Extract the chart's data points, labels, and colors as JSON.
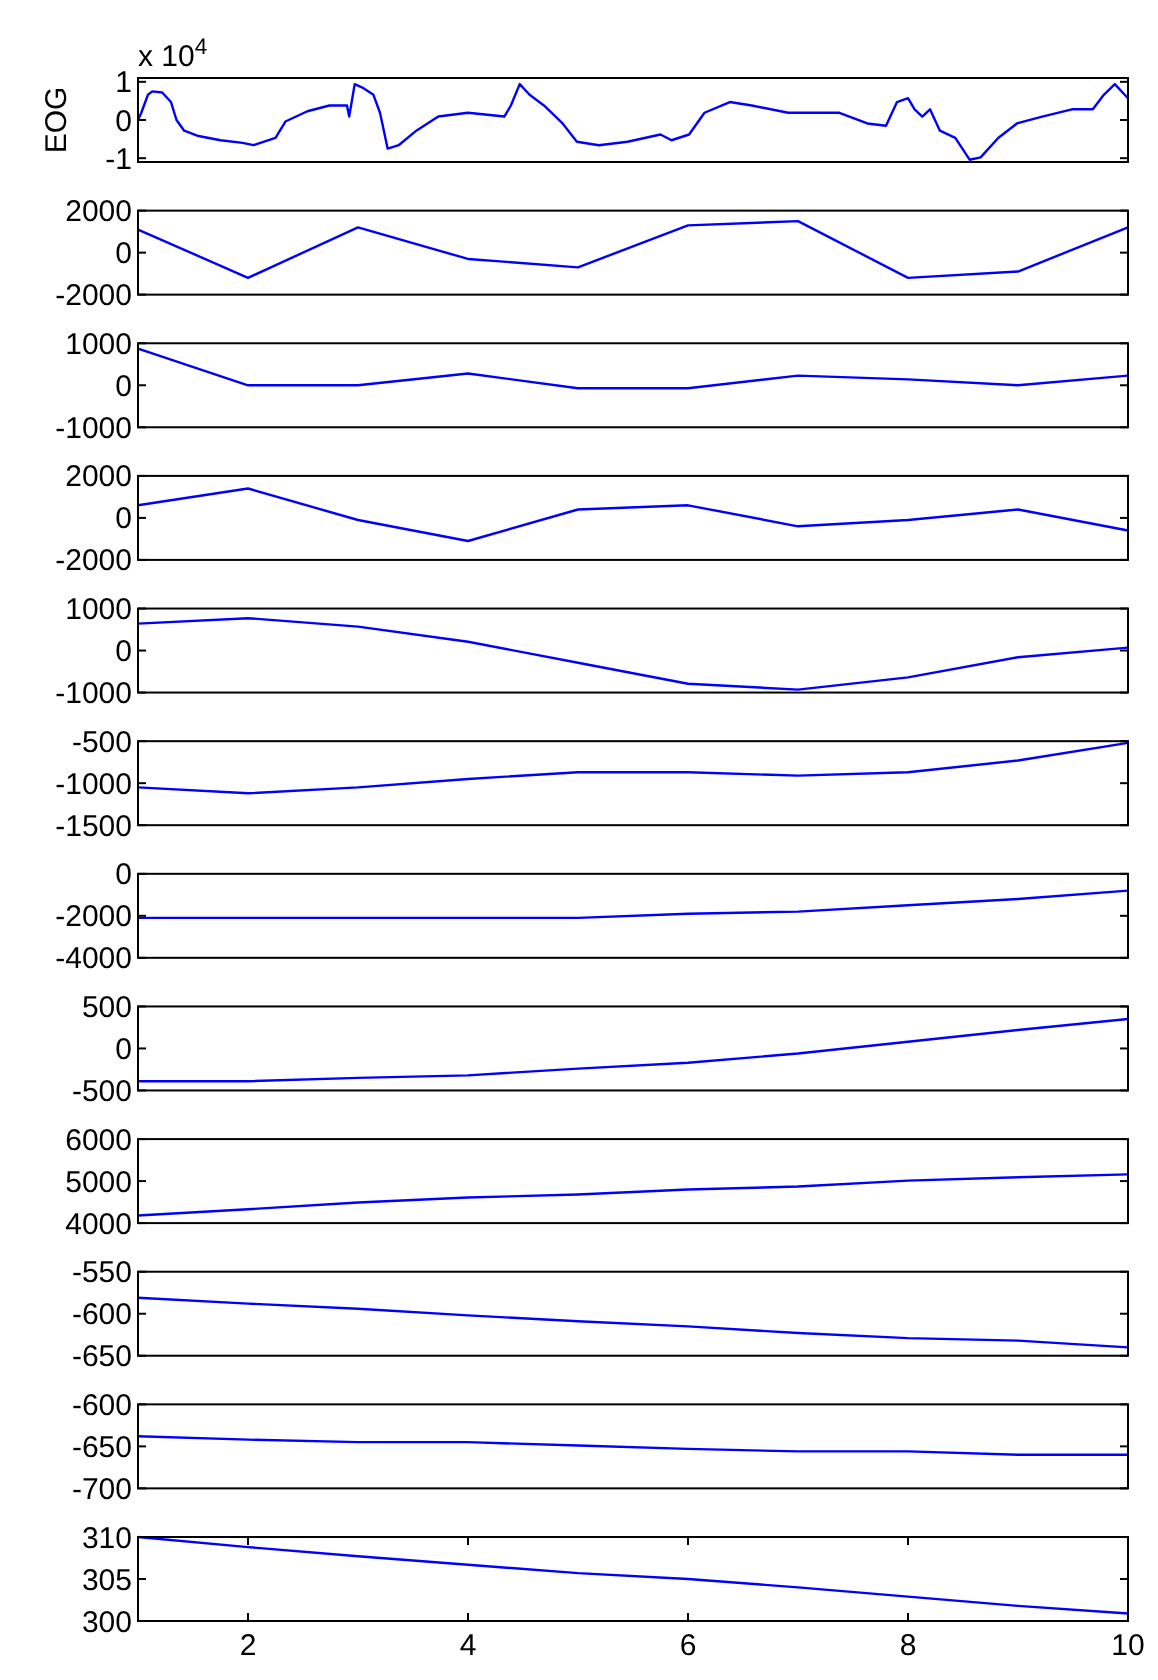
{
  "chart_data": [
    {
      "type": "line",
      "ylabel": "EOG",
      "annotations": [
        "x 10$^{4}$"
      ],
      "color": "#0000ff",
      "xlim": [
        1,
        10
      ],
      "ylim": [
        -1.1,
        1.1
      ],
      "yticks": [
        -1,
        0,
        1
      ],
      "tick_labels": "y",
      "x": [
        1.0,
        1.03,
        1.09,
        1.13,
        1.22,
        1.3,
        1.35,
        1.42,
        1.55,
        1.75,
        1.95,
        2.05,
        2.25,
        2.34,
        2.54,
        2.74,
        2.9,
        2.92,
        2.97,
        3.04,
        3.14,
        3.2,
        3.27,
        3.37,
        3.53,
        3.73,
        4.0,
        4.33,
        4.39,
        4.47,
        4.56,
        4.69,
        4.86,
        4.99,
        5.19,
        5.45,
        5.75,
        5.85,
        6.01,
        6.15,
        6.38,
        6.58,
        6.91,
        7.37,
        7.63,
        7.8,
        7.9,
        8.0,
        8.06,
        8.13,
        8.2,
        8.29,
        8.43,
        8.56,
        8.66,
        8.82,
        8.99,
        9.22,
        9.49,
        9.68,
        9.78,
        9.88,
        10.0
      ],
      "values": [
        0,
        0.19,
        0.66,
        0.75,
        0.72,
        0.47,
        0,
        -0.28,
        -0.42,
        -0.53,
        -0.6,
        -0.66,
        -0.47,
        -0.04,
        0.23,
        0.38,
        0.38,
        0.09,
        0.94,
        0.85,
        0.66,
        0.19,
        -0.75,
        -0.66,
        -0.28,
        0.09,
        0.19,
        0.09,
        0.38,
        0.94,
        0.66,
        0.38,
        -0.09,
        -0.57,
        -0.66,
        -0.57,
        -0.38,
        -0.53,
        -0.38,
        0.19,
        0.47,
        0.38,
        0.19,
        0.19,
        -0.09,
        -0.15,
        0.47,
        0.57,
        0.28,
        0.09,
        0.28,
        -0.28,
        -0.47,
        -1.04,
        -0.98,
        -0.47,
        -0.09,
        0.09,
        0.28,
        0.28,
        0.66,
        0.94,
        0.57
      ]
    },
    {
      "type": "line",
      "color": "#0000ff",
      "xlim": [
        1,
        10
      ],
      "ylim": [
        -2000,
        2000
      ],
      "yticks": [
        -2000,
        0,
        2000
      ],
      "tick_labels": "y",
      "x": [
        1,
        2,
        3,
        4,
        5,
        6,
        7,
        8,
        9,
        10
      ],
      "values": [
        1100,
        -1200,
        1200,
        -300,
        -700,
        1300,
        1500,
        -1200,
        -900,
        1200
      ]
    },
    {
      "type": "line",
      "color": "#0000ff",
      "xlim": [
        1,
        10
      ],
      "ylim": [
        -1000,
        1000
      ],
      "yticks": [
        -1000,
        0,
        1000
      ],
      "tick_labels": "y",
      "x": [
        1,
        2,
        3,
        4,
        5,
        6,
        7,
        8,
        9,
        10
      ],
      "values": [
        870,
        0,
        0,
        280,
        -70,
        -70,
        230,
        140,
        0,
        230
      ]
    },
    {
      "type": "line",
      "color": "#0000ff",
      "xlim": [
        1,
        10
      ],
      "ylim": [
        -2000,
        2000
      ],
      "yticks": [
        -2000,
        0,
        2000
      ],
      "tick_labels": "y",
      "x": [
        1,
        2,
        3,
        4,
        5,
        6,
        7,
        8,
        9,
        10
      ],
      "values": [
        600,
        1400,
        -100,
        -1100,
        400,
        600,
        -400,
        -100,
        400,
        -600
      ]
    },
    {
      "type": "line",
      "color": "#0000ff",
      "xlim": [
        1,
        10
      ],
      "ylim": [
        -1000,
        1000
      ],
      "yticks": [
        -1000,
        0,
        1000
      ],
      "tick_labels": "y",
      "x": [
        1,
        2,
        3,
        4,
        5,
        6,
        7,
        8,
        9,
        10
      ],
      "values": [
        640,
        770,
        570,
        210,
        -290,
        -790,
        -930,
        -640,
        -160,
        70
      ]
    },
    {
      "type": "line",
      "color": "#0000ff",
      "xlim": [
        1,
        10
      ],
      "ylim": [
        -1500,
        -500
      ],
      "yticks": [
        -1500,
        -1000,
        -500
      ],
      "tick_labels": "y",
      "x": [
        1,
        2,
        3,
        4,
        5,
        6,
        7,
        8,
        9,
        10
      ],
      "values": [
        -1050,
        -1120,
        -1050,
        -950,
        -870,
        -870,
        -910,
        -870,
        -730,
        -520
      ]
    },
    {
      "type": "line",
      "color": "#0000ff",
      "xlim": [
        1,
        10
      ],
      "ylim": [
        -4000,
        0
      ],
      "yticks": [
        -4000,
        -2000,
        0
      ],
      "tick_labels": "y",
      "x": [
        1,
        2,
        3,
        4,
        5,
        6,
        7,
        8,
        9,
        10
      ],
      "values": [
        -2100,
        -2100,
        -2100,
        -2100,
        -2100,
        -1900,
        -1800,
        -1500,
        -1200,
        -800
      ]
    },
    {
      "type": "line",
      "color": "#0000ff",
      "xlim": [
        1,
        10
      ],
      "ylim": [
        -500,
        500
      ],
      "yticks": [
        -500,
        0,
        500
      ],
      "tick_labels": "y",
      "x": [
        1,
        2,
        3,
        4,
        5,
        6,
        7,
        8,
        9,
        10
      ],
      "values": [
        -390,
        -390,
        -350,
        -320,
        -240,
        -170,
        -60,
        80,
        220,
        350
      ]
    },
    {
      "type": "line",
      "color": "#0000ff",
      "xlim": [
        1,
        10
      ],
      "ylim": [
        4000,
        6000
      ],
      "yticks": [
        4000,
        5000,
        6000
      ],
      "tick_labels": "y",
      "x": [
        1,
        2,
        3,
        4,
        5,
        6,
        7,
        8,
        9,
        10
      ],
      "values": [
        4180,
        4330,
        4490,
        4610,
        4680,
        4800,
        4870,
        5010,
        5090,
        5160
      ]
    },
    {
      "type": "line",
      "color": "#0000ff",
      "xlim": [
        1,
        10
      ],
      "ylim": [
        -650,
        -550
      ],
      "yticks": [
        -650,
        -600,
        -550
      ],
      "tick_labels": "y",
      "x": [
        1,
        2,
        3,
        4,
        5,
        6,
        7,
        8,
        9,
        10
      ],
      "values": [
        -581,
        -588,
        -594,
        -602,
        -609,
        -615,
        -623,
        -629,
        -632,
        -640
      ]
    },
    {
      "type": "line",
      "color": "#0000ff",
      "xlim": [
        1,
        10
      ],
      "ylim": [
        -700,
        -600
      ],
      "yticks": [
        -700,
        -650,
        -600
      ],
      "tick_labels": "y",
      "x": [
        1,
        2,
        3,
        4,
        5,
        6,
        7,
        8,
        9,
        10
      ],
      "values": [
        -638,
        -642,
        -645,
        -645,
        -649,
        -653,
        -656,
        -656,
        -660,
        -660
      ]
    },
    {
      "type": "line",
      "color": "#0000ff",
      "xlim": [
        1,
        10
      ],
      "ylim": [
        300,
        310
      ],
      "yticks": [
        300,
        305,
        310
      ],
      "xticks": [
        2,
        4,
        6,
        8,
        10
      ],
      "x": [
        1,
        2,
        3,
        4,
        5,
        6,
        7,
        8,
        9,
        10
      ],
      "values": [
        310,
        308.8,
        307.7,
        306.7,
        305.7,
        305,
        304,
        302.9,
        301.8,
        300.9
      ]
    }
  ]
}
